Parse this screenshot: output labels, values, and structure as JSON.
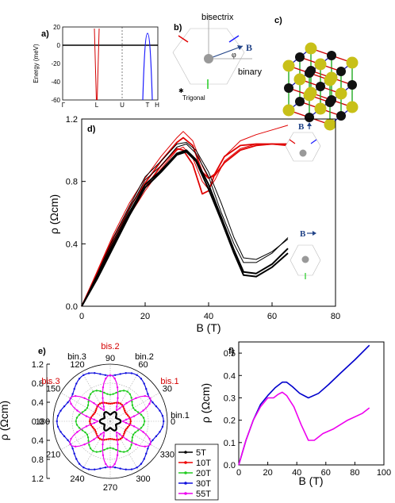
{
  "chart_data": [
    {
      "panel": "a)",
      "type": "line",
      "ylabel": "Energy (meV)",
      "xticks": [
        "Γ",
        "L",
        "U",
        "T",
        "H"
      ],
      "yticks": [
        "20",
        "0",
        "-20",
        "-40",
        "-60"
      ],
      "ylim": [
        -60,
        20
      ],
      "series": [
        {
          "color": "#d40000",
          "shape": "narrow V at L"
        },
        {
          "color": "#1a1aff",
          "shape": "inverted parabola at T"
        }
      ]
    },
    {
      "panel": "b)",
      "type": "diagram",
      "labels": {
        "bisectrix": "bisectrix",
        "b": "B",
        "phi": "φ",
        "binary": "binary",
        "trigonal": "Trigonal"
      }
    },
    {
      "panel": "c)",
      "type": "diagram"
    },
    {
      "panel": "d)",
      "type": "line",
      "xlabel": "B (T)",
      "ylabel": "ρ (Ωcm)",
      "xlim": [
        0,
        80
      ],
      "ylim": [
        0,
        1.2
      ],
      "xticks": [
        "0",
        "20",
        "40",
        "60",
        "80"
      ],
      "yticks": [
        "0.0",
        "0.4",
        "0.8",
        "1.2"
      ],
      "inset_labels": [
        "B",
        "B"
      ],
      "series": [
        {
          "color": "#e00000",
          "width": 1.8,
          "points": [
            [
              0,
              0
            ],
            [
              5,
              0.22
            ],
            [
              10,
              0.44
            ],
            [
              15,
              0.63
            ],
            [
              20,
              0.79
            ],
            [
              25,
              0.93
            ],
            [
              30,
              1.05
            ],
            [
              32,
              1.08
            ],
            [
              35,
              1.03
            ],
            [
              38,
              0.86
            ],
            [
              40,
              0.82
            ],
            [
              42,
              0.84
            ],
            [
              45,
              0.92
            ],
            [
              50,
              1.0
            ],
            [
              55,
              1.03
            ],
            [
              60,
              1.04
            ],
            [
              65,
              1.04
            ]
          ]
        },
        {
          "color": "#e00000",
          "width": 1.8,
          "points": [
            [
              0,
              0
            ],
            [
              5,
              0.21
            ],
            [
              10,
              0.42
            ],
            [
              15,
              0.6
            ],
            [
              20,
              0.76
            ],
            [
              25,
              0.9
            ],
            [
              30,
              1.01
            ],
            [
              32,
              1.0
            ],
            [
              35,
              0.91
            ],
            [
              38,
              0.72
            ],
            [
              40,
              0.74
            ],
            [
              42,
              0.85
            ],
            [
              45,
              0.96
            ],
            [
              50,
              1.03
            ],
            [
              55,
              1.04
            ],
            [
              60,
              1.04
            ],
            [
              65,
              1.03
            ]
          ]
        },
        {
          "color": "#e00000",
          "width": 1.0,
          "points": [
            [
              0,
              0
            ],
            [
              5,
              0.23
            ],
            [
              10,
              0.46
            ],
            [
              15,
              0.66
            ],
            [
              20,
              0.82
            ],
            [
              25,
              0.96
            ],
            [
              30,
              1.08
            ],
            [
              32,
              1.12
            ],
            [
              35,
              1.06
            ],
            [
              38,
              0.9
            ],
            [
              40,
              0.82
            ],
            [
              42,
              0.85
            ],
            [
              45,
              0.96
            ],
            [
              50,
              1.06
            ],
            [
              55,
              1.1
            ],
            [
              60,
              1.13
            ],
            [
              65,
              1.16
            ]
          ]
        },
        {
          "color": "#e00000",
          "width": 1.0,
          "points": [
            [
              0,
              0
            ],
            [
              5,
              0.2
            ],
            [
              10,
              0.4
            ],
            [
              15,
              0.58
            ],
            [
              20,
              0.74
            ],
            [
              25,
              0.88
            ],
            [
              30,
              1.0
            ],
            [
              32,
              1.02
            ],
            [
              35,
              0.95
            ],
            [
              38,
              0.8
            ],
            [
              40,
              0.75
            ],
            [
              42,
              0.81
            ],
            [
              45,
              0.93
            ],
            [
              50,
              1.01
            ],
            [
              55,
              1.04
            ],
            [
              60,
              1.04
            ],
            [
              65,
              1.04
            ]
          ]
        },
        {
          "color": "#000000",
          "width": 2.0,
          "points": [
            [
              0,
              0
            ],
            [
              5,
              0.18
            ],
            [
              10,
              0.38
            ],
            [
              15,
              0.58
            ],
            [
              20,
              0.76
            ],
            [
              25,
              0.86
            ],
            [
              30,
              0.97
            ],
            [
              33,
              0.99
            ],
            [
              36,
              0.93
            ],
            [
              40,
              0.75
            ],
            [
              44,
              0.55
            ],
            [
              48,
              0.34
            ],
            [
              51,
              0.2
            ],
            [
              55,
              0.19
            ],
            [
              60,
              0.25
            ],
            [
              65,
              0.34
            ]
          ]
        },
        {
          "color": "#000000",
          "width": 2.0,
          "points": [
            [
              0,
              0
            ],
            [
              5,
              0.19
            ],
            [
              10,
              0.4
            ],
            [
              15,
              0.6
            ],
            [
              20,
              0.78
            ],
            [
              25,
              0.87
            ],
            [
              30,
              0.98
            ],
            [
              33,
              1.0
            ],
            [
              36,
              0.94
            ],
            [
              40,
              0.78
            ],
            [
              44,
              0.57
            ],
            [
              48,
              0.36
            ],
            [
              51,
              0.22
            ],
            [
              55,
              0.21
            ],
            [
              60,
              0.27
            ],
            [
              65,
              0.37
            ]
          ]
        },
        {
          "color": "#000000",
          "width": 1.0,
          "points": [
            [
              0,
              0
            ],
            [
              5,
              0.2
            ],
            [
              10,
              0.42
            ],
            [
              15,
              0.62
            ],
            [
              20,
              0.81
            ],
            [
              25,
              0.9
            ],
            [
              30,
              1.02
            ],
            [
              33,
              1.04
            ],
            [
              36,
              0.98
            ],
            [
              40,
              0.83
            ],
            [
              44,
              0.6
            ],
            [
              48,
              0.4
            ],
            [
              51,
              0.28
            ],
            [
              55,
              0.28
            ],
            [
              60,
              0.34
            ],
            [
              65,
              0.44
            ]
          ]
        },
        {
          "color": "#000000",
          "width": 1.0,
          "points": [
            [
              0,
              0
            ],
            [
              5,
              0.21
            ],
            [
              10,
              0.44
            ],
            [
              15,
              0.64
            ],
            [
              20,
              0.83
            ],
            [
              25,
              0.93
            ],
            [
              30,
              1.04
            ],
            [
              33,
              1.05
            ],
            [
              36,
              1.0
            ],
            [
              40,
              0.86
            ],
            [
              44,
              0.66
            ],
            [
              48,
              0.44
            ],
            [
              51,
              0.31
            ],
            [
              55,
              0.3
            ],
            [
              60,
              0.35
            ],
            [
              65,
              0.43
            ]
          ]
        }
      ]
    },
    {
      "panel": "e)",
      "type": "polar",
      "ylabel": "ρ (Ωcm)",
      "rlim": [
        0,
        1.2
      ],
      "yticks": [
        "1.2",
        "0.8",
        "0.4",
        "0.0",
        "0.4",
        "0.8",
        "1.2"
      ],
      "angle_ticks": [
        "0",
        "30",
        "60",
        "90",
        "120",
        "150",
        "180",
        "210",
        "240",
        "270",
        "300",
        "330"
      ],
      "annotations": [
        {
          "text": "bis.2",
          "color": "#d40000"
        },
        {
          "text": "bin.3",
          "color": "#000000"
        },
        {
          "text": "bin.2",
          "color": "#000000"
        },
        {
          "text": "bis.3",
          "color": "#d40000"
        },
        {
          "text": "bis.1",
          "color": "#d40000"
        },
        {
          "text": "bin.1",
          "color": "#000000"
        }
      ],
      "series": [
        {
          "name": "5T",
          "color": "#000000",
          "r0": 0.18,
          "amp": 0.04,
          "phase": 0
        },
        {
          "name": "10T",
          "color": "#ee0000",
          "r0": 0.4,
          "amp": 0.03,
          "phase": 0
        },
        {
          "name": "20T",
          "color": "#22cc22",
          "r0": 0.64,
          "amp": 0.08,
          "phase": 0
        },
        {
          "name": "30T",
          "color": "#1010dd",
          "r0": 1.04,
          "amp": 0.08,
          "phase": 0
        },
        {
          "name": "55T",
          "color": "#ee00ee",
          "r0": 0.62,
          "amp": 0.35,
          "phase": 1
        }
      ]
    },
    {
      "panel": "f)",
      "type": "line",
      "xlabel": "B (T)",
      "ylabel": "ρ (Ωcm)",
      "xlim": [
        0,
        100
      ],
      "ylim": [
        0,
        0.55
      ],
      "xticks": [
        "0",
        "20",
        "40",
        "60",
        "80",
        "100"
      ],
      "yticks": [
        "0.0",
        "0.1",
        "0.2",
        "0.3",
        "0.4",
        "0.5"
      ],
      "series": [
        {
          "color": "#0000cc",
          "points": [
            [
              0,
              0
            ],
            [
              5,
              0.11
            ],
            [
              10,
              0.2
            ],
            [
              15,
              0.27
            ],
            [
              20,
              0.31
            ],
            [
              25,
              0.345
            ],
            [
              30,
              0.37
            ],
            [
              33,
              0.37
            ],
            [
              37,
              0.35
            ],
            [
              42,
              0.32
            ],
            [
              48,
              0.3
            ],
            [
              55,
              0.32
            ],
            [
              62,
              0.36
            ],
            [
              70,
              0.41
            ],
            [
              80,
              0.47
            ],
            [
              90,
              0.535
            ]
          ]
        },
        {
          "color": "#ee00ee",
          "points": [
            [
              0,
              0
            ],
            [
              5,
              0.11
            ],
            [
              10,
              0.2
            ],
            [
              15,
              0.26
            ],
            [
              20,
              0.3
            ],
            [
              24,
              0.3
            ],
            [
              27,
              0.315
            ],
            [
              30,
              0.325
            ],
            [
              33,
              0.31
            ],
            [
              38,
              0.26
            ],
            [
              43,
              0.18
            ],
            [
              48,
              0.11
            ],
            [
              52,
              0.11
            ],
            [
              58,
              0.14
            ],
            [
              65,
              0.16
            ],
            [
              75,
              0.2
            ],
            [
              85,
              0.23
            ],
            [
              90,
              0.255
            ]
          ]
        }
      ]
    }
  ]
}
